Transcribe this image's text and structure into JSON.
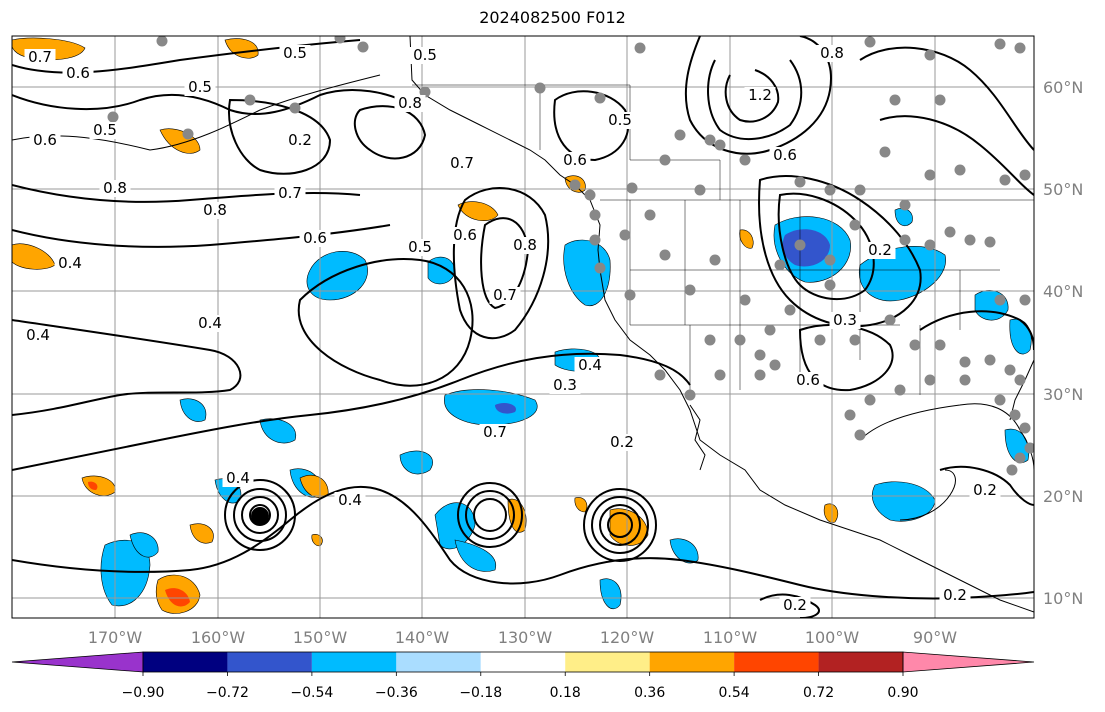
{
  "title": "2024082500 F012",
  "colors": {
    "colorbar": [
      "#9933cc",
      "#000080",
      "#3355cc",
      "#00bbff",
      "#aaddff",
      "#ffffff",
      "#ffee88",
      "#ffa500",
      "#ff4500",
      "#b22222",
      "#ff88aa"
    ],
    "gridline": "#999999",
    "contour": "#000000",
    "station": "#888888"
  },
  "axes": {
    "x_ticks": [
      "170°W",
      "160°W",
      "150°W",
      "140°W",
      "130°W",
      "120°W",
      "110°W",
      "100°W",
      "90°W"
    ],
    "y_ticks": [
      "60°N",
      "50°N",
      "40°N",
      "30°N",
      "20°N",
      "10°N"
    ]
  },
  "colorbar": {
    "tick_labels": [
      "−0.90",
      "−0.72",
      "−0.54",
      "−0.36",
      "−0.18",
      "0.18",
      "0.36",
      "0.54",
      "0.72",
      "0.90"
    ]
  },
  "contour_labels": [
    "0.7",
    "0.6",
    "0.5",
    "0.5",
    "0.5",
    "0.8",
    "0.6",
    "0.5",
    "0.7",
    "0.8",
    "0.7",
    "0.8",
    "0.6",
    "0.4",
    "0.4",
    "0.4",
    "0.5",
    "0.6",
    "0.8",
    "0.7",
    "0.6",
    "0.5",
    "0.7",
    "0.3",
    "0.2",
    "0.8",
    "1.2",
    "0.6",
    "0.4",
    "0.2",
    "0.3",
    "0.6",
    "0.2",
    "0.2",
    "0.2",
    "0.4",
    "0.4",
    "0.2"
  ]
}
